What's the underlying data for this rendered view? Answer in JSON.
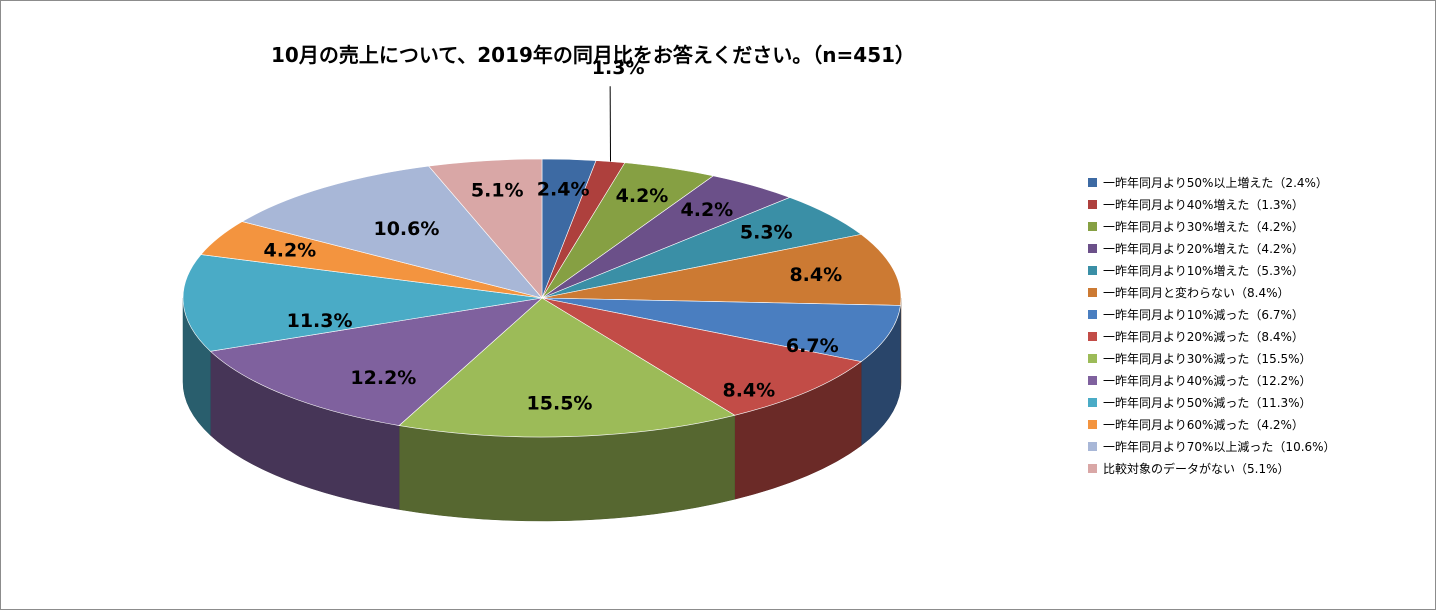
{
  "chart_data": {
    "type": "pie",
    "title": "10月の売上について、2019年の同月比をお答えください。（n=451）",
    "labels": [
      "一昨年同月より50%以上増えた（2.4%）",
      "一昨年同月より40%増えた（1.3%）",
      "一昨年同月より30%増えた（4.2%）",
      "一昨年同月より20%増えた（4.2%）",
      "一昨年同月より10%増えた（5.3%）",
      "一昨年同月と変わらない（8.4%）",
      "一昨年同月より10%減った（6.7%）",
      "一昨年同月より20%減った（8.4%）",
      "一昨年同月より30%減った（15.5%）",
      "一昨年同月より40%減った（12.2%）",
      "一昨年同月より50%減った（11.3%）",
      "一昨年同月より60%減った（4.2%）",
      "一昨年同月より70%以上減った（10.6%）",
      "比較対象のデータがない（5.1%）"
    ],
    "values": [
      2.4,
      1.3,
      4.2,
      4.2,
      5.3,
      8.4,
      6.7,
      8.4,
      15.5,
      12.2,
      11.3,
      4.2,
      10.6,
      5.1
    ],
    "data_labels": [
      "2.4%",
      "1.3%",
      "4.2%",
      "4.2%",
      "5.3%",
      "8.4%",
      "6.7%",
      "8.4%",
      "15.5%",
      "12.2%",
      "11.3%",
      "4.2%",
      "10.6%",
      "5.1%"
    ],
    "colors": [
      "#3d6aa3",
      "#ae403d",
      "#86a043",
      "#6b5089",
      "#3a8fa6",
      "#cc7a33",
      "#4a7ec0",
      "#c24c47",
      "#9cbb58",
      "#7f619e",
      "#4aabc6",
      "#f3943f",
      "#a8b7d7",
      "#d9a7a6"
    ],
    "legend_position": "right",
    "style": "3d-pie"
  }
}
